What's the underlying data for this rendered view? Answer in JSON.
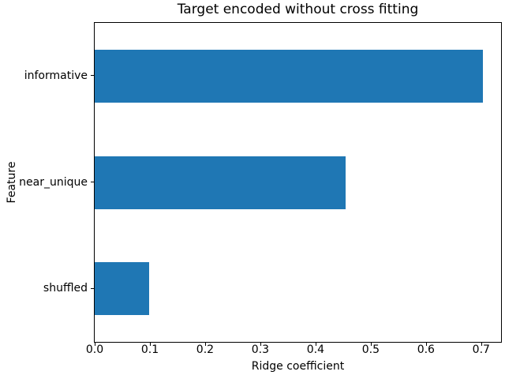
{
  "figure": {
    "background": "#ffffff",
    "text_color": "#000000",
    "spine_color": "#000000"
  },
  "chart_data": {
    "type": "bar",
    "orientation": "horizontal",
    "title": "Target encoded without cross fitting",
    "xlabel": "Ridge coefficient",
    "ylabel": "Feature",
    "categories": [
      "informative",
      "near_unique",
      "shuffled"
    ],
    "values": [
      0.703,
      0.455,
      0.098
    ],
    "xlim": [
      0.0,
      0.736
    ],
    "xtick_values": [
      0.0,
      0.1,
      0.2,
      0.3,
      0.4,
      0.5,
      0.6,
      0.7
    ],
    "xtick_labels": [
      "0.0",
      "0.1",
      "0.2",
      "0.3",
      "0.4",
      "0.5",
      "0.6",
      "0.7"
    ],
    "bar_color": "#1f77b4",
    "bar_height_fraction": 0.5,
    "grid": false,
    "legend": false
  }
}
